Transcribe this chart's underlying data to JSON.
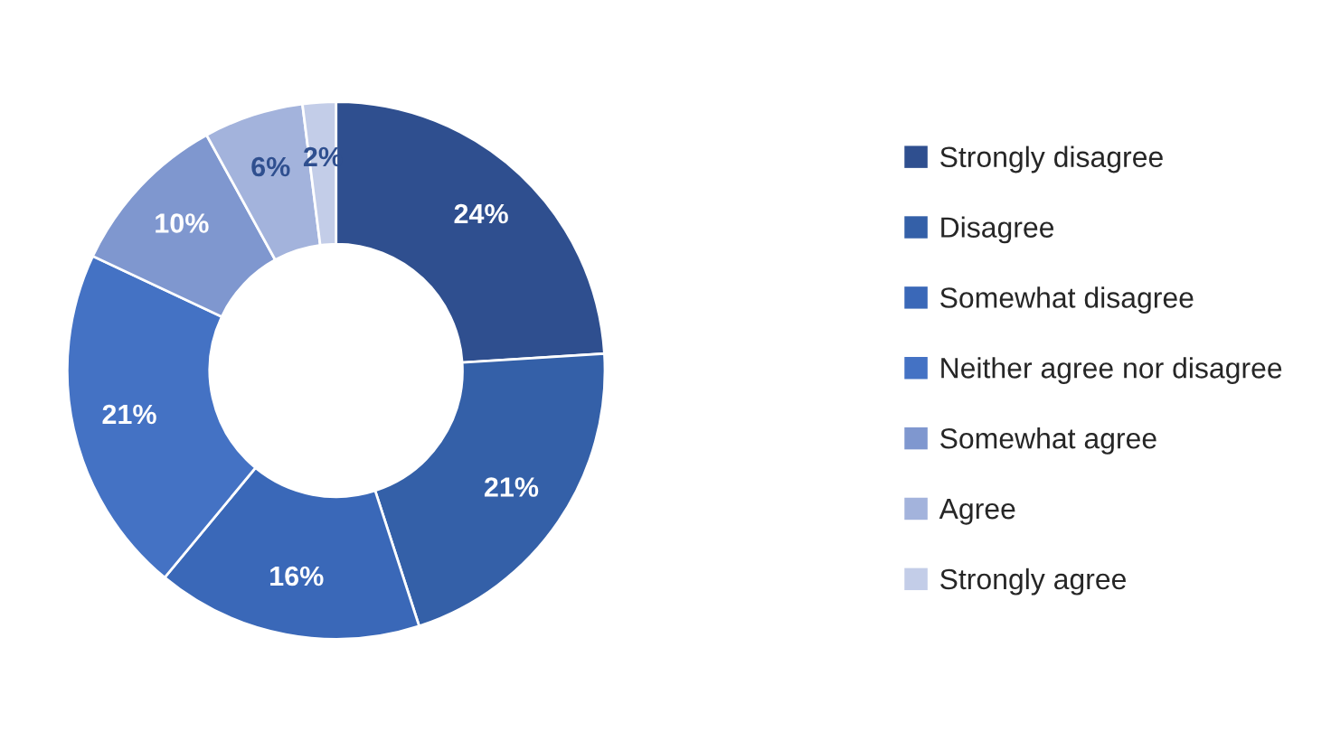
{
  "chart_data": {
    "type": "donut",
    "categories": [
      "Strongly disagree",
      "Disagree",
      "Somewhat disagree",
      "Neither agree nor disagree",
      "Somewhat agree",
      "Agree",
      "Strongly agree"
    ],
    "values": [
      24,
      21,
      16,
      21,
      10,
      6,
      2
    ],
    "colors": [
      "#2f4f8f",
      "#3460a8",
      "#3a68b8",
      "#4472c4",
      "#7f97cf",
      "#a3b3dc",
      "#c3cde8"
    ],
    "value_labels": [
      "24%",
      "21%",
      "16%",
      "21%",
      "10%",
      "6%",
      "2%"
    ],
    "legend": "right"
  }
}
